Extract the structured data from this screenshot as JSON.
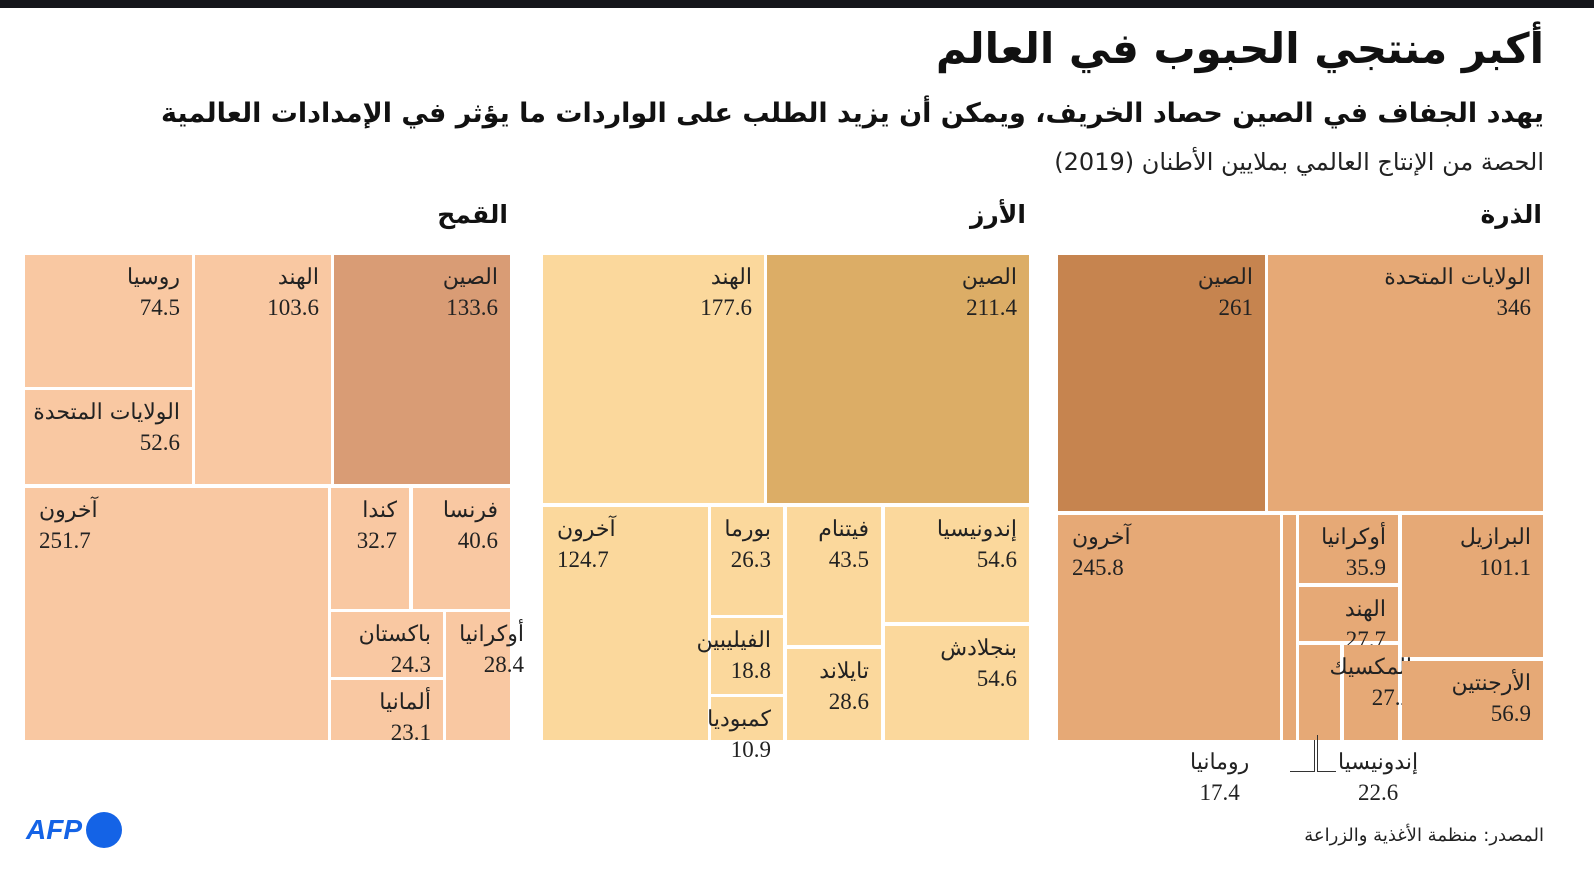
{
  "title": "أكبر منتجي الحبوب في العالم",
  "subtitle": "يهدد الجفاف في الصين حصاد الخريف، ويمكن أن يزيد الطلب على الواردات ما يؤثر في الإمدادات العالمية",
  "unit_note": "الحصة من الإنتاج العالمي بملايين الأطنان (2019)",
  "source": "المصدر: منظمة الأغذية والزراعة",
  "logo": "AFP",
  "chart_data": [
    {
      "type": "treemap",
      "title": "الذرة",
      "colors": {
        "highlight": "#c6844f",
        "base": "#e6a976"
      },
      "items": [
        {
          "name": "الولايات المتحدة",
          "value": 346
        },
        {
          "name": "الصين",
          "value": 261,
          "highlight": true
        },
        {
          "name": "آخرون",
          "value": 245.8
        },
        {
          "name": "رومانيا",
          "value": 17.4
        },
        {
          "name": "أوكرانيا",
          "value": 35.9
        },
        {
          "name": "الهند",
          "value": 27.7
        },
        {
          "name": "إندونيسيا",
          "value": 22.6
        },
        {
          "name": "المكسيك",
          "value": 27.2
        },
        {
          "name": "البرازيل",
          "value": 101.1
        },
        {
          "name": "الأرجنتين",
          "value": 56.9
        }
      ]
    },
    {
      "type": "treemap",
      "title": "الأرز",
      "colors": {
        "highlight": "#dcad66",
        "base": "#fbd89c"
      },
      "items": [
        {
          "name": "الصين",
          "value": 211.4,
          "highlight": true
        },
        {
          "name": "الهند",
          "value": 177.6
        },
        {
          "name": "آخرون",
          "value": 124.7
        },
        {
          "name": "بورما",
          "value": 26.3
        },
        {
          "name": "الفيليبين",
          "value": 18.8
        },
        {
          "name": "كمبوديا",
          "value": 10.9
        },
        {
          "name": "فيتنام",
          "value": 43.5
        },
        {
          "name": "تايلاند",
          "value": 28.6
        },
        {
          "name": "إندونيسيا",
          "value": 54.6
        },
        {
          "name": "بنجلادش",
          "value": 54.6
        }
      ]
    },
    {
      "type": "treemap",
      "title": "القمح",
      "colors": {
        "highlight": "#d99c75",
        "base": "#f9c8a2"
      },
      "items": [
        {
          "name": "الصين",
          "value": 133.6,
          "highlight": true
        },
        {
          "name": "الهند",
          "value": 103.6
        },
        {
          "name": "روسيا",
          "value": 74.5
        },
        {
          "name": "الولايات المتحدة",
          "value": 52.6
        },
        {
          "name": "آخرون",
          "value": 251.7
        },
        {
          "name": "فرنسا",
          "value": 40.6
        },
        {
          "name": "كندا",
          "value": 32.7
        },
        {
          "name": "أوكرانيا",
          "value": 28.4
        },
        {
          "name": "باكستان",
          "value": 24.3
        },
        {
          "name": "ألمانيا",
          "value": 23.1
        }
      ]
    }
  ]
}
